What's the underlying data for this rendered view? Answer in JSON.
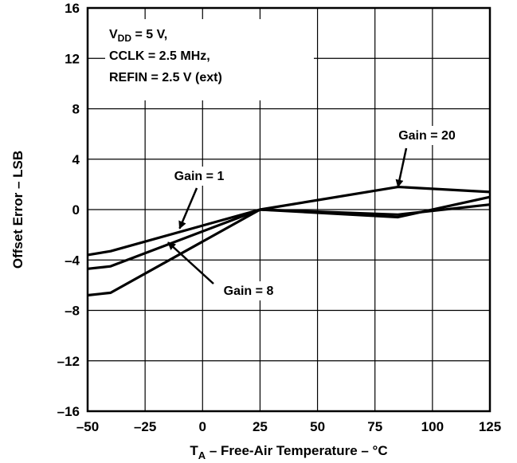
{
  "chart_data": {
    "type": "line",
    "xlabel": {
      "main": "T",
      "sub": "A",
      "rest": " – Free-Air Temperature – °C"
    },
    "ylabel": "Offset Error – LSB",
    "xlim": [
      -50,
      125
    ],
    "ylim": [
      -16,
      16
    ],
    "x_ticks": [
      -50,
      -25,
      0,
      25,
      50,
      75,
      100,
      125
    ],
    "y_ticks": [
      -16,
      -12,
      -8,
      -4,
      0,
      4,
      8,
      12,
      16
    ],
    "x_tick_labels": [
      "–50",
      "–25",
      "0",
      "25",
      "50",
      "75",
      "100",
      "125"
    ],
    "y_tick_labels": [
      "–16",
      "–12",
      "–8",
      "–4",
      "0",
      "4",
      "8",
      "12",
      "16"
    ],
    "grid": true,
    "conditions": [
      {
        "main": "V",
        "sub": "DD",
        "rest": " = 5 V,"
      },
      {
        "main": "CCLK = 2.5 MHz,",
        "sub": "",
        "rest": ""
      },
      {
        "main": "REFIN = 2.5 V (ext)",
        "sub": "",
        "rest": ""
      }
    ],
    "series": [
      {
        "label": "Gain = 1",
        "x": [
          -50,
          -40,
          25,
          85,
          125
        ],
        "y": [
          -3.6,
          -3.3,
          0,
          -0.4,
          0.4
        ]
      },
      {
        "label": "Gain = 8",
        "x": [
          -50,
          -40,
          25,
          85,
          125
        ],
        "y": [
          -6.8,
          -6.6,
          0,
          -0.6,
          1.0
        ]
      },
      {
        "label": "Gain = 20",
        "x": [
          -50,
          -40,
          25,
          85,
          125
        ],
        "y": [
          -4.7,
          -4.5,
          0,
          1.8,
          1.4
        ]
      }
    ],
    "annotations": [
      {
        "text": "Gain = 20",
        "series": 2,
        "arrow_to": [
          85,
          1.8
        ]
      },
      {
        "text": "Gain = 1",
        "series": 0,
        "arrow_to": [
          -10,
          -1.5
        ]
      },
      {
        "text": "Gain = 8",
        "series": 1,
        "arrow_to": [
          -15,
          -2.6
        ]
      }
    ]
  }
}
